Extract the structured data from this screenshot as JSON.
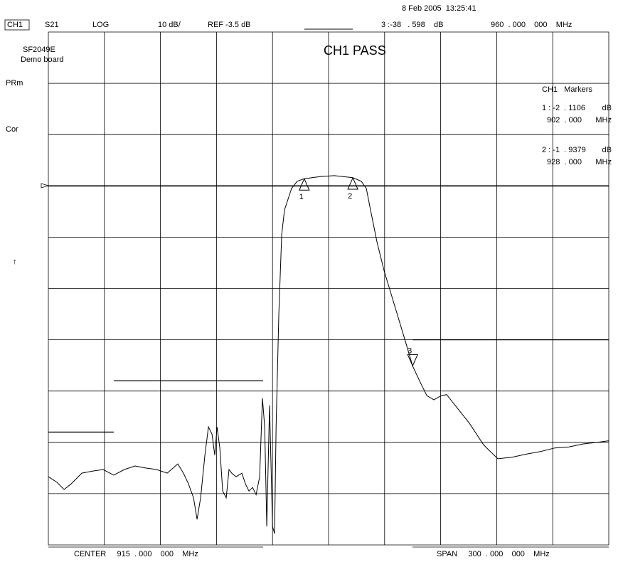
{
  "chart_data": {
    "type": "line",
    "title": "CH1 PASS",
    "header": {
      "channel": "CH1",
      "parameter": "S21",
      "format": "LOG",
      "scale": "10 dB/",
      "reference": "REF -3.5 dB",
      "active_marker": "3 :-38   . 598    dB",
      "marker_frequency": "960  . 000    000    MHz",
      "timestamp": "8 Feb 2005  13:25:41"
    },
    "notes": [
      "SF2049E",
      "Demo board"
    ],
    "annotations": [
      "PRm",
      "Cor",
      "↑"
    ],
    "marker_table": {
      "title": "CH1   Markers",
      "entries": [
        [
          "1 : -2  . 1106",
          "dB",
          "902  . 000",
          "MHz"
        ],
        [
          "2 : -1  . 9379",
          "dB",
          "928  . 000",
          "MHz"
        ]
      ]
    },
    "footer": {
      "center": "CENTER     915  . 000    000    MHz",
      "span": "SPAN     300  . 000    000    MHz"
    },
    "x": [
      765,
      769.6,
      773.4,
      777.2,
      782.9,
      788.6,
      794.3,
      800.0,
      805.7,
      811.4,
      817.1,
      822.9,
      828.6,
      834.3,
      837.3,
      840.0,
      842.7,
      844.6,
      846.5,
      848.8,
      850.7,
      852.6,
      854.1,
      855.3,
      856.8,
      858.3,
      860.2,
      861.7,
      863.2,
      865.5,
      868.6,
      870.5,
      872.4,
      874.3,
      876.2,
      878.1,
      879.6,
      880.8,
      881.9,
      883.4,
      885.0,
      886.1,
      886.9,
      888.4,
      889.9,
      891.4,
      893.3,
      895.2,
      898.2,
      902.0,
      910.4,
      918.0,
      928.0,
      932.5,
      935.2,
      937.1,
      940.9,
      944.7,
      950.4,
      956.1,
      960.0,
      963.7,
      967.6,
      971.4,
      975.2,
      978.2,
      982.8,
      990.4,
      998.0,
      1005.6,
      1013.2,
      1020.8,
      1028.4,
      1036.1,
      1043.7,
      1051.3,
      1058.9,
      1065
    ],
    "series": [
      {
        "color": "#000000",
        "values": [
          -60.2,
          -61.3,
          -62.7,
          -61.6,
          -59.5,
          -59.1,
          -58.8,
          -59.9,
          -58.8,
          -58.1,
          -58.5,
          -58.8,
          -59.5,
          -57.7,
          -59.5,
          -61.6,
          -64.3,
          -68.5,
          -64.3,
          -56.0,
          -50.5,
          -51.9,
          -56.0,
          -50.5,
          -54.6,
          -63.0,
          -64.3,
          -58.8,
          -59.5,
          -60.2,
          -59.5,
          -61.6,
          -63.0,
          -62.3,
          -63.7,
          -60.2,
          -44.9,
          -50.5,
          -69.9,
          -46.3,
          -69.9,
          -71.3,
          -50.5,
          -28.3,
          -13.0,
          -8.2,
          -6.1,
          -4.0,
          -2.6,
          -2.1,
          -1.7,
          -1.5,
          -1.9,
          -2.6,
          -4.0,
          -7.5,
          -14.4,
          -20.0,
          -26.9,
          -33.8,
          -38.6,
          -41.5,
          -44.4,
          -45.2,
          -44.4,
          -44.2,
          -46.3,
          -49.8,
          -54.0,
          -56.7,
          -56.4,
          -55.8,
          -55.3,
          -54.6,
          -54.4,
          -53.8,
          -53.5,
          -53.2
        ]
      }
    ],
    "markers": [
      {
        "label": "1",
        "x": 902,
        "value": -2.1106,
        "direction": "up"
      },
      {
        "label": "2",
        "x": 928,
        "value": -1.9379,
        "direction": "up"
      },
      {
        "label": "3",
        "x": 960,
        "value": -38.598,
        "direction": "down"
      }
    ],
    "reference_level": -3.5,
    "limit_lines": [
      {
        "x": [
          960,
          1065
        ],
        "value": -33.5
      },
      {
        "x": [
          800,
          880
        ],
        "value": -41.5
      },
      {
        "x": [
          765,
          800
        ],
        "value": -51.5
      }
    ],
    "xlim": [
      765,
      1065
    ],
    "ylim": [
      -73.5,
      26.5
    ],
    "xticks": [
      765,
      795,
      825,
      855,
      885,
      915,
      945,
      975,
      1005,
      1035,
      1065
    ],
    "yticks": [
      -73.5,
      -63.5,
      -53.5,
      -43.5,
      -33.5,
      -23.5,
      -13.5,
      -3.5,
      6.5,
      16.5,
      26.5
    ],
    "grid": true
  }
}
